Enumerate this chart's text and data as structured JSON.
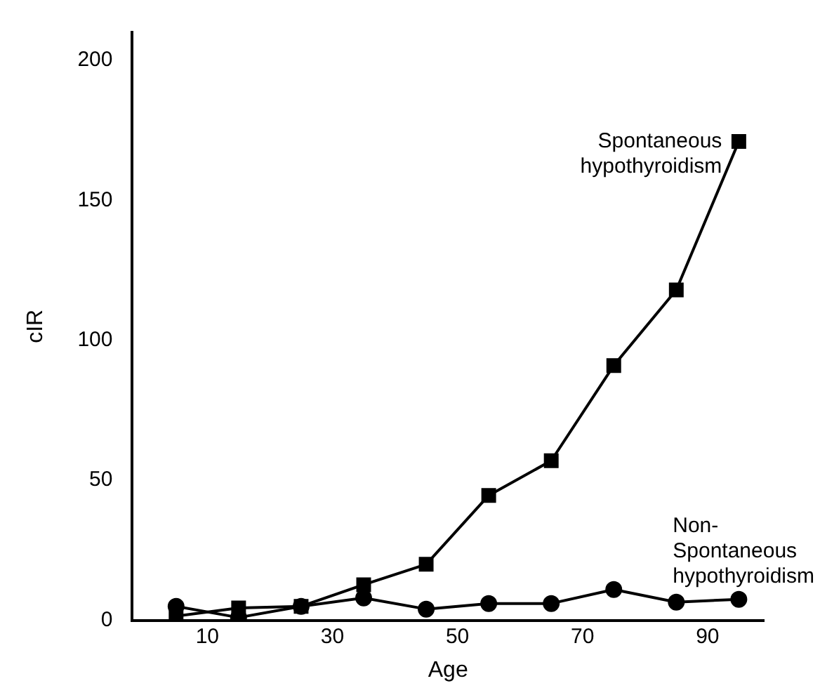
{
  "chart_data": {
    "type": "line",
    "xlabel": "Age",
    "ylabel": "cIR",
    "x": [
      5,
      15,
      25,
      35,
      45,
      55,
      65,
      75,
      85,
      95
    ],
    "series": [
      {
        "name": "Spontaneous hypothyroidism",
        "color": "#000000",
        "marker": "square",
        "values": [
          1.5,
          4.4,
          5,
          12.7,
          20,
          44.6,
          57,
          91,
          118,
          171
        ]
      },
      {
        "name": "Non-Spontaneous hypothyroidism",
        "color": "#000000",
        "marker": "circle",
        "values": [
          5,
          1,
          5,
          8,
          4,
          6,
          6,
          11,
          6.5,
          7.5
        ]
      }
    ],
    "xlim": [
      -2,
      99
    ],
    "xticks": [
      10,
      30,
      50,
      70,
      90
    ],
    "ylim": [
      0,
      210
    ],
    "yticks": [
      0,
      50,
      100,
      150,
      200
    ],
    "grid": false,
    "legend": false,
    "line_style": "solid"
  }
}
